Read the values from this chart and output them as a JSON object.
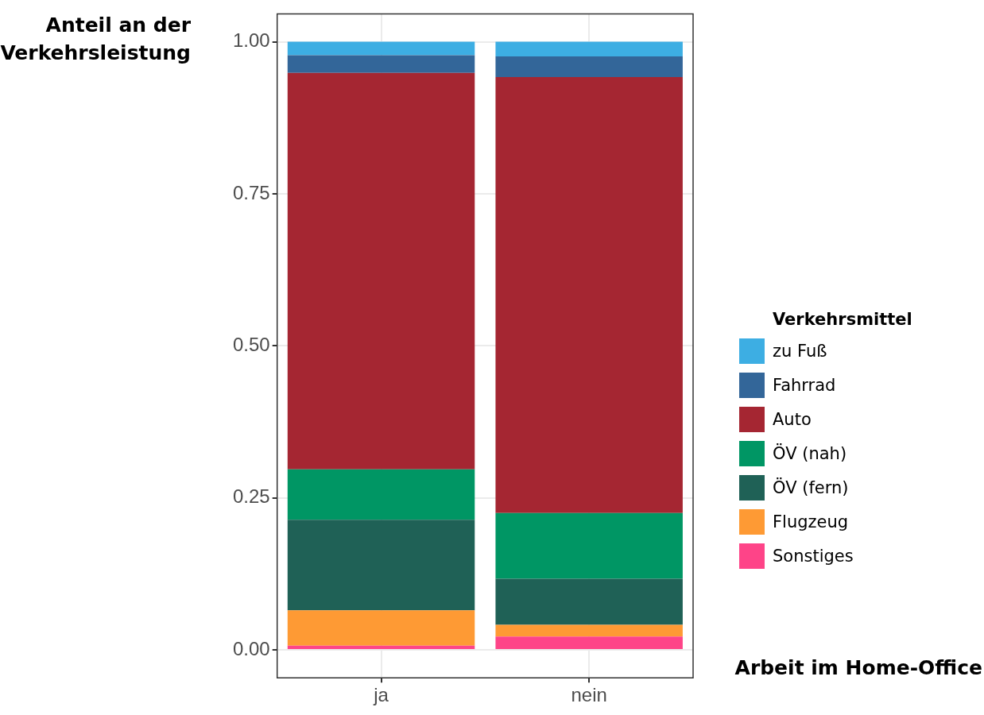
{
  "chart_data": {
    "type": "bar",
    "stacked": true,
    "ylabel": "Anteil an der Verkehrsleistung",
    "xlabel": "Arbeit im Home-Office",
    "legend_title": "Verkehrsmittel",
    "legend": "right",
    "grid": true,
    "categories": [
      "ja",
      "nein"
    ],
    "ylim": [
      -0.046,
      1.046
    ],
    "yticks": [
      {
        "value": 0,
        "label": "0.00"
      },
      {
        "value": 0.25,
        "label": "0.25"
      },
      {
        "value": 0.5,
        "label": "0.50"
      },
      {
        "value": 0.75,
        "label": "0.75"
      },
      {
        "value": 1,
        "label": "1.00"
      }
    ],
    "series": [
      {
        "name": "Sonstiges",
        "color": "#fe4488",
        "values": [
          0.007,
          0.022
        ]
      },
      {
        "name": "Flugzeug",
        "color": "#fe9a34",
        "values": [
          0.058,
          0.019
        ]
      },
      {
        "name": "ÖV (fern)",
        "color": "#1f6156",
        "values": [
          0.149,
          0.076
        ]
      },
      {
        "name": "ÖV (nah)",
        "color": "#009664",
        "values": [
          0.083,
          0.108
        ]
      },
      {
        "name": "Auto",
        "color": "#a52632",
        "values": [
          0.652,
          0.717
        ]
      },
      {
        "name": "Fahrrad",
        "color": "#336699",
        "values": [
          0.029,
          0.034
        ]
      },
      {
        "name": "zu Fuß",
        "color": "#3daee3",
        "values": [
          0.022,
          0.024
        ]
      }
    ]
  }
}
